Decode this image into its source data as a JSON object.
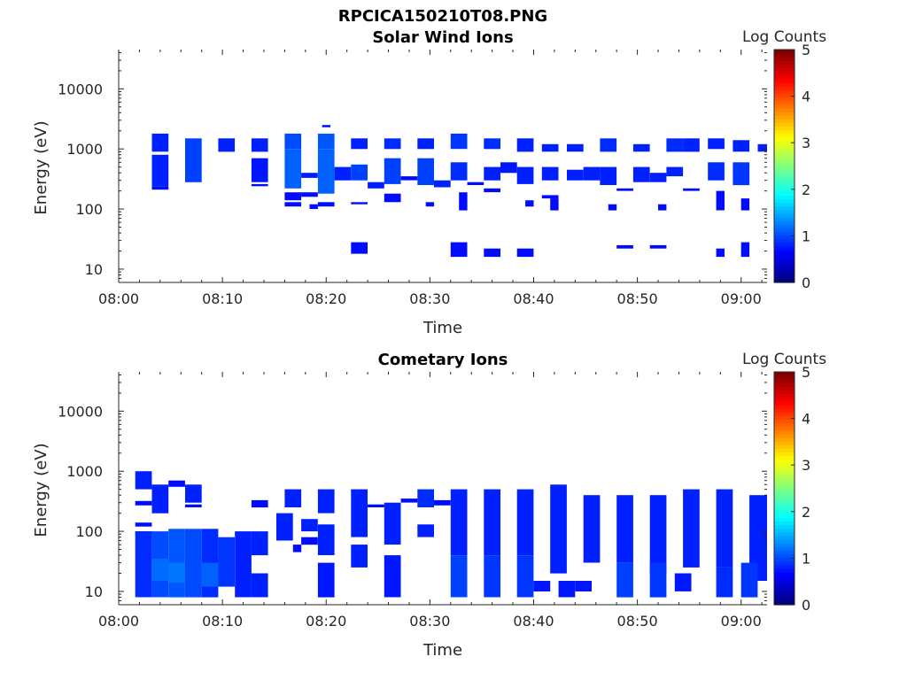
{
  "figure_title": "RPCICA150210T08.PNG",
  "colorbar": {
    "label": "Log Counts",
    "ticks": [
      "0",
      "1",
      "2",
      "3",
      "4",
      "5"
    ],
    "range": [
      0,
      5
    ],
    "colormap": "jet"
  },
  "chart_data": [
    {
      "type": "heatmap",
      "title": "Solar Wind Ions",
      "xlabel": "Time",
      "ylabel": "Energy (eV)",
      "xlim": [
        0,
        62.5
      ],
      "x_unit": "minutes after 08:00",
      "xticks": [
        {
          "value": 0,
          "label": "08:00"
        },
        {
          "value": 10,
          "label": "08:10"
        },
        {
          "value": 20,
          "label": "08:20"
        },
        {
          "value": 30,
          "label": "08:30"
        },
        {
          "value": 40,
          "label": "08:40"
        },
        {
          "value": 50,
          "label": "08:50"
        },
        {
          "value": 60,
          "label": "09:00"
        }
      ],
      "yscale": "log",
      "ylim": [
        6,
        45000
      ],
      "yticks": [
        {
          "value": 10,
          "label": "10"
        },
        {
          "value": 100,
          "label": "100"
        },
        {
          "value": 1000,
          "label": "1000"
        },
        {
          "value": 10000,
          "label": "10000"
        }
      ],
      "cells": [
        [
          3.2,
          4.8,
          900,
          1800,
          0.3
        ],
        [
          3.2,
          4.8,
          240,
          800,
          0.3
        ],
        [
          3.2,
          4.8,
          210,
          240,
          0.2
        ],
        [
          6.4,
          8,
          280,
          1500,
          0.45
        ],
        [
          9.6,
          11.2,
          900,
          1500,
          0.3
        ],
        [
          12.8,
          14.4,
          900,
          1500,
          0.3
        ],
        [
          12.8,
          14.4,
          280,
          700,
          0.25
        ],
        [
          12.8,
          14.4,
          240,
          260,
          0.2
        ],
        [
          16,
          17.6,
          1000,
          1800,
          0.5
        ],
        [
          16,
          17.6,
          220,
          1000,
          0.6
        ],
        [
          16,
          17.6,
          140,
          190,
          0.2
        ],
        [
          16,
          17.6,
          110,
          130,
          0.2
        ],
        [
          17.6,
          19.2,
          160,
          190,
          0.2
        ],
        [
          18.4,
          19.2,
          100,
          120,
          0.2
        ],
        [
          17.6,
          19.2,
          330,
          400,
          0.3
        ],
        [
          19.2,
          20.8,
          1000,
          1800,
          0.55
        ],
        [
          19.2,
          20.8,
          180,
          1000,
          0.6
        ],
        [
          19.6,
          20.4,
          2300,
          2500,
          0.2
        ],
        [
          19.2,
          20.8,
          110,
          130,
          0.2
        ],
        [
          20.8,
          22.4,
          300,
          500,
          0.3
        ],
        [
          22.4,
          24,
          1000,
          1500,
          0.3
        ],
        [
          22.4,
          24,
          300,
          550,
          0.45
        ],
        [
          22.4,
          24,
          120,
          130,
          0.2
        ],
        [
          22.4,
          24,
          18,
          28,
          0.2
        ],
        [
          24,
          25.6,
          220,
          280,
          0.3
        ],
        [
          25.6,
          27.2,
          1000,
          1500,
          0.35
        ],
        [
          25.6,
          27.2,
          260,
          700,
          0.45
        ],
        [
          25.6,
          27.2,
          130,
          180,
          0.2
        ],
        [
          27.2,
          28.8,
          300,
          350,
          0.2
        ],
        [
          28.8,
          30.4,
          1000,
          1500,
          0.3
        ],
        [
          28.8,
          30.4,
          250,
          700,
          0.45
        ],
        [
          29.6,
          30.4,
          110,
          130,
          0.2
        ],
        [
          30.4,
          32,
          230,
          300,
          0.3
        ],
        [
          32,
          33.6,
          1000,
          1800,
          0.4
        ],
        [
          32,
          33.6,
          300,
          600,
          0.35
        ],
        [
          32.8,
          33.6,
          95,
          190,
          0.2
        ],
        [
          32,
          33.6,
          16,
          28,
          0.2
        ],
        [
          33.6,
          35.2,
          250,
          280,
          0.2
        ],
        [
          35.2,
          36.8,
          1000,
          1500,
          0.35
        ],
        [
          35.2,
          36.8,
          300,
          500,
          0.3
        ],
        [
          35.2,
          36.8,
          190,
          220,
          0.2
        ],
        [
          35.2,
          36.8,
          16,
          22,
          0.2
        ],
        [
          36.8,
          38.4,
          400,
          600,
          0.25
        ],
        [
          38.4,
          40,
          900,
          1500,
          0.3
        ],
        [
          38.4,
          40,
          260,
          500,
          0.3
        ],
        [
          38.4,
          40,
          16,
          22,
          0.2
        ],
        [
          39.2,
          40,
          110,
          140,
          0.2
        ],
        [
          40.8,
          42.4,
          900,
          1200,
          0.3
        ],
        [
          40.8,
          42.4,
          300,
          500,
          0.3
        ],
        [
          41.6,
          42.4,
          95,
          150,
          0.2
        ],
        [
          40.8,
          42.4,
          150,
          170,
          0.2
        ],
        [
          43.2,
          44.8,
          900,
          1200,
          0.3
        ],
        [
          43.2,
          44.8,
          300,
          450,
          0.3
        ],
        [
          44.8,
          46.4,
          300,
          500,
          0.3
        ],
        [
          46.4,
          48,
          900,
          1500,
          0.35
        ],
        [
          46.4,
          48,
          250,
          500,
          0.3
        ],
        [
          47.2,
          48,
          95,
          120,
          0.2
        ],
        [
          48,
          49.6,
          200,
          220,
          0.2
        ],
        [
          48,
          49.6,
          22,
          25,
          0.2
        ],
        [
          49.6,
          51.2,
          900,
          1200,
          0.3
        ],
        [
          49.6,
          51.2,
          280,
          500,
          0.3
        ],
        [
          51.2,
          52.8,
          280,
          400,
          0.3
        ],
        [
          52,
          52.8,
          95,
          120,
          0.2
        ],
        [
          51.2,
          52.8,
          22,
          25,
          0.2
        ],
        [
          52.8,
          54.4,
          900,
          1500,
          0.35
        ],
        [
          52.8,
          54.4,
          350,
          500,
          0.3
        ],
        [
          54.4,
          56,
          900,
          1500,
          0.3
        ],
        [
          54.4,
          56,
          200,
          220,
          0.2
        ],
        [
          56.8,
          58.4,
          1000,
          1500,
          0.3
        ],
        [
          56.8,
          58.4,
          300,
          600,
          0.35
        ],
        [
          57.6,
          58.4,
          95,
          200,
          0.2
        ],
        [
          57.6,
          58.4,
          16,
          22,
          0.2
        ],
        [
          59.2,
          60.8,
          900,
          1400,
          0.3
        ],
        [
          59.2,
          60.8,
          250,
          600,
          0.4
        ],
        [
          60,
          60.8,
          95,
          150,
          0.2
        ],
        [
          60,
          60.8,
          16,
          28,
          0.2
        ],
        [
          61.6,
          62.5,
          900,
          1200,
          0.3
        ]
      ]
    },
    {
      "type": "heatmap",
      "title": "Cometary Ions",
      "xlabel": "Time",
      "ylabel": "Energy (eV)",
      "xlim": [
        0,
        62.5
      ],
      "x_unit": "minutes after 08:00",
      "xticks": [
        {
          "value": 0,
          "label": "08:00"
        },
        {
          "value": 10,
          "label": "08:10"
        },
        {
          "value": 20,
          "label": "08:20"
        },
        {
          "value": 30,
          "label": "08:30"
        },
        {
          "value": 40,
          "label": "08:40"
        },
        {
          "value": 50,
          "label": "08:50"
        },
        {
          "value": 60,
          "label": "09:00"
        }
      ],
      "yscale": "log",
      "ylim": [
        6,
        45000
      ],
      "yticks": [
        {
          "value": 10,
          "label": "10"
        },
        {
          "value": 100,
          "label": "100"
        },
        {
          "value": 1000,
          "label": "1000"
        },
        {
          "value": 10000,
          "label": "10000"
        }
      ],
      "cells": [
        [
          1.6,
          3.2,
          500,
          1000,
          0.3
        ],
        [
          1.6,
          3.2,
          270,
          320,
          0.2
        ],
        [
          3.2,
          4.8,
          200,
          600,
          0.3
        ],
        [
          4.8,
          6.4,
          550,
          700,
          0.2
        ],
        [
          6.4,
          8,
          300,
          600,
          0.3
        ],
        [
          6.4,
          8,
          250,
          280,
          0.2
        ],
        [
          1.6,
          3.2,
          120,
          140,
          0.2
        ],
        [
          1.6,
          3.2,
          90,
          100,
          0.2
        ],
        [
          1.6,
          3.2,
          8,
          100,
          0.35
        ],
        [
          3.2,
          4.8,
          8,
          100,
          0.5
        ],
        [
          4.8,
          6.4,
          8,
          110,
          0.55
        ],
        [
          6.4,
          8,
          8,
          110,
          0.5
        ],
        [
          8,
          9.6,
          8,
          110,
          0.35
        ],
        [
          8,
          9.6,
          12,
          30,
          0.6
        ],
        [
          4.8,
          6.4,
          14,
          30,
          0.7
        ],
        [
          3.2,
          4.8,
          15,
          35,
          0.65
        ],
        [
          9.6,
          11.2,
          12,
          80,
          0.4
        ],
        [
          11.2,
          12.8,
          8,
          100,
          0.3
        ],
        [
          12.8,
          14.4,
          8,
          20,
          0.3
        ],
        [
          12.8,
          14.4,
          40,
          100,
          0.3
        ],
        [
          12.8,
          14.4,
          250,
          330,
          0.2
        ],
        [
          16,
          17.6,
          250,
          500,
          0.3
        ],
        [
          15.2,
          16.8,
          70,
          200,
          0.3
        ],
        [
          16.8,
          17.6,
          45,
          60,
          0.2
        ],
        [
          17.6,
          19.2,
          100,
          160,
          0.3
        ],
        [
          17.6,
          19.2,
          60,
          80,
          0.2
        ],
        [
          19.2,
          20.8,
          200,
          500,
          0.3
        ],
        [
          19.2,
          20.8,
          40,
          130,
          0.3
        ],
        [
          19.2,
          20.8,
          8,
          30,
          0.25
        ],
        [
          22.4,
          24,
          80,
          500,
          0.3
        ],
        [
          22.4,
          24,
          25,
          60,
          0.3
        ],
        [
          24,
          25.6,
          250,
          280,
          0.2
        ],
        [
          25.6,
          27.2,
          60,
          300,
          0.3
        ],
        [
          25.6,
          27.2,
          8,
          40,
          0.25
        ],
        [
          27.2,
          28.8,
          300,
          350,
          0.2
        ],
        [
          28.8,
          30.4,
          250,
          500,
          0.35
        ],
        [
          28.8,
          30.4,
          80,
          130,
          0.3
        ],
        [
          30.4,
          32,
          270,
          330,
          0.2
        ],
        [
          32,
          33.6,
          40,
          500,
          0.3
        ],
        [
          32,
          33.6,
          8,
          40,
          0.45
        ],
        [
          35.2,
          36.8,
          40,
          500,
          0.3
        ],
        [
          35.2,
          36.8,
          8,
          40,
          0.4
        ],
        [
          38.4,
          40,
          40,
          500,
          0.3
        ],
        [
          38.4,
          40,
          8,
          40,
          0.4
        ],
        [
          40,
          41.6,
          10,
          15,
          0.25
        ],
        [
          41.6,
          43.2,
          20,
          600,
          0.3
        ],
        [
          42.4,
          44,
          8,
          15,
          0.25
        ],
        [
          44.8,
          46.4,
          30,
          400,
          0.3
        ],
        [
          44,
          45.6,
          10,
          15,
          0.25
        ],
        [
          48,
          49.6,
          30,
          400,
          0.3
        ],
        [
          48,
          49.6,
          8,
          30,
          0.45
        ],
        [
          51.2,
          52.8,
          20,
          400,
          0.3
        ],
        [
          51.2,
          52.8,
          8,
          30,
          0.4
        ],
        [
          54.4,
          56,
          25,
          500,
          0.3
        ],
        [
          53.6,
          55.2,
          10,
          20,
          0.25
        ],
        [
          57.6,
          59.2,
          25,
          500,
          0.3
        ],
        [
          57.6,
          59.2,
          8,
          25,
          0.35
        ],
        [
          60.8,
          62.5,
          15,
          400,
          0.3
        ],
        [
          60,
          61.6,
          8,
          30,
          0.4
        ]
      ]
    }
  ]
}
